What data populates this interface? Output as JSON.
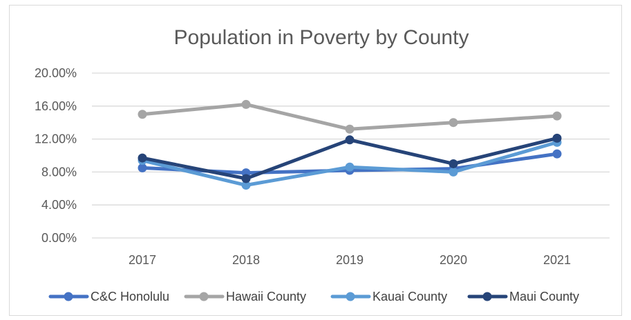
{
  "chart_data": {
    "type": "line",
    "title": "Population in Poverty by County",
    "xlabel": "",
    "ylabel": "",
    "categories": [
      "2017",
      "2018",
      "2019",
      "2020",
      "2021"
    ],
    "ylim": [
      0,
      20
    ],
    "y_ticks": [
      "0.00%",
      "4.00%",
      "8.00%",
      "12.00%",
      "16.00%",
      "20.00%"
    ],
    "y_tick_values": [
      0,
      4,
      8,
      12,
      16,
      20
    ],
    "grid": true,
    "legend_position": "bottom",
    "series": [
      {
        "name": "C&C Honolulu",
        "color": "#4472c4",
        "values": [
          8.5,
          7.9,
          8.2,
          8.4,
          10.2
        ]
      },
      {
        "name": "Hawaii County",
        "color": "#a5a5a5",
        "values": [
          15.0,
          16.2,
          13.2,
          14.0,
          14.8
        ]
      },
      {
        "name": "Kauai County",
        "color": "#5b9bd5",
        "values": [
          9.4,
          6.4,
          8.6,
          8.0,
          11.6
        ]
      },
      {
        "name": "Maui County",
        "color": "#264478",
        "values": [
          9.7,
          7.2,
          11.9,
          9.0,
          12.1
        ]
      }
    ]
  }
}
